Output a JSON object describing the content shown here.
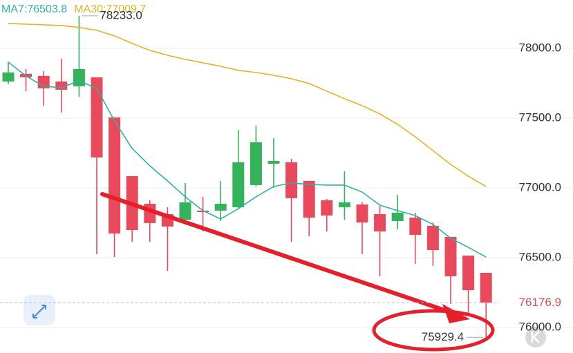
{
  "chart_data": {
    "type": "candlestick",
    "up_color": "#33b35a",
    "down_color": "#e84a5c",
    "open": [
      77762,
      77817,
      77802,
      77762,
      77728,
      77792,
      77505,
      77084,
      76886,
      76812,
      76772,
      76837,
      76837,
      76861,
      77020,
      77173,
      77183,
      77050,
      76911,
      76861,
      76881,
      76812,
      76762,
      76787,
      76728,
      76649,
      76515,
      76391
    ],
    "high": [
      77901,
      77851,
      77837,
      77926,
      78233,
      77792,
      77505,
      77084,
      76911,
      76861,
      77035,
      76936,
      77050,
      77416,
      77446,
      77356,
      77208,
      77050,
      76921,
      77119,
      76896,
      76871,
      76950,
      76822,
      76752,
      76649,
      76515,
      76391
    ],
    "low": [
      77743,
      77693,
      77589,
      77540,
      77653,
      76525,
      76505,
      76614,
      76614,
      76406,
      76762,
      76688,
      76762,
      76851,
      77010,
      77000,
      76614,
      76653,
      76688,
      76772,
      76525,
      76366,
      76703,
      76455,
      76441,
      76168,
      76094,
      75929.4
    ],
    "close": [
      77827,
      77792,
      77713,
      77703,
      77851,
      77218,
      76673,
      76698,
      76748,
      76723,
      76896,
      76827,
      76886,
      77183,
      77327,
      77193,
      76926,
      76787,
      76802,
      76896,
      76752,
      76688,
      76822,
      76663,
      76554,
      76366,
      76267,
      76176.9
    ],
    "series": [
      {
        "name": "MA7:76503.8",
        "color": "#2bb5a0",
        "values": [
          77901,
          77802,
          77728,
          77718,
          77767,
          77713,
          77480,
          77282,
          77158,
          77050,
          76936,
          76837,
          76777,
          76851,
          76936,
          77010,
          77035,
          77025,
          77020,
          77020,
          76970,
          76876,
          76837,
          76802,
          76738,
          76639,
          76574,
          76503.8
        ]
      },
      {
        "name": "MA30:77009.7",
        "color": "#e8b224",
        "values": [
          78178,
          78173,
          78168,
          78163,
          78149,
          78129,
          78089,
          78035,
          77985,
          77950,
          77921,
          77896,
          77871,
          77842,
          77827,
          77807,
          77782,
          77748,
          77693,
          77639,
          77589,
          77530,
          77455,
          77366,
          77267,
          77168,
          77084,
          77009.7
        ]
      }
    ],
    "ylim": [
      75817,
      78346
    ],
    "yticks": [
      {
        "value": 76000,
        "label": "76000.0"
      },
      {
        "value": 76500,
        "label": "76500.0"
      },
      {
        "value": 77000,
        "label": "77000.0"
      },
      {
        "value": 77500,
        "label": "77500.0"
      },
      {
        "value": 78000,
        "label": "78000.0"
      }
    ],
    "grid": true,
    "high_label": {
      "value": 78233,
      "label": "78233.0"
    },
    "low_label": {
      "value": 75929.4,
      "label": "75929.4"
    },
    "last_price": {
      "value": 76176.9,
      "label": "76176.9"
    }
  }
}
